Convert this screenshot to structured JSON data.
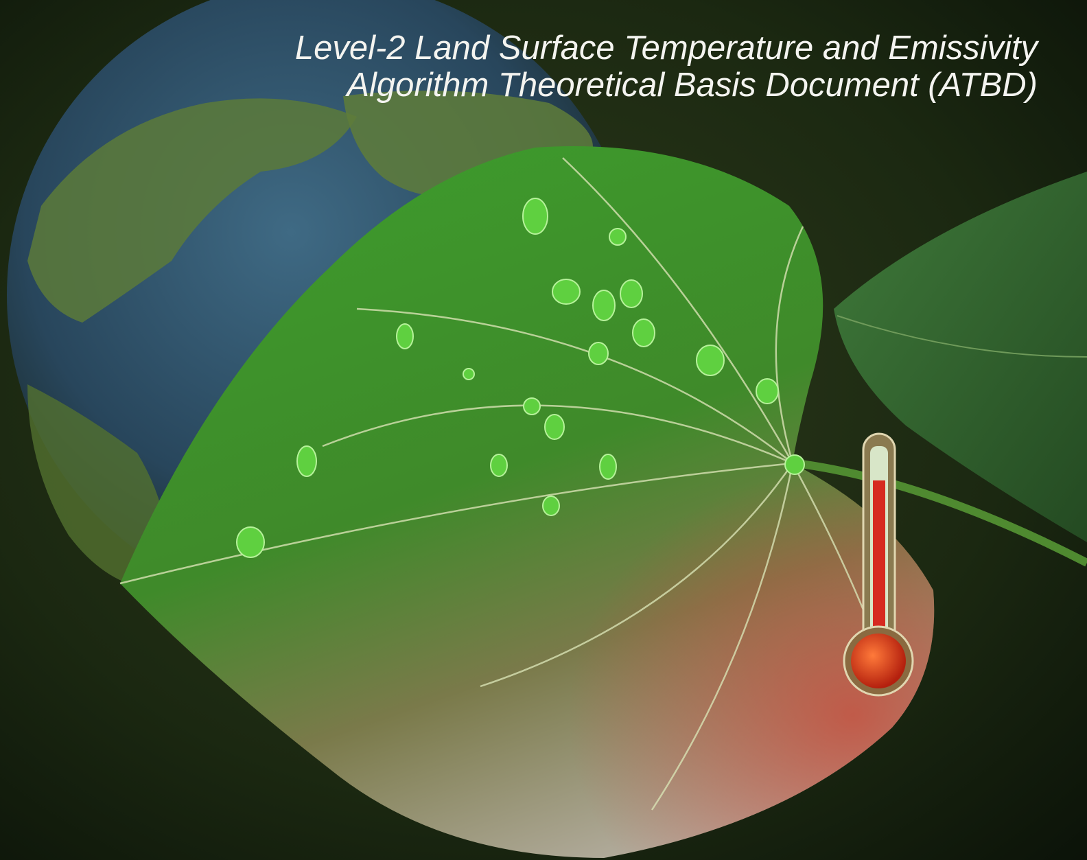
{
  "title": {
    "line1": "Level-2 Land Surface Temperature and Emissivity",
    "line2": "Algorithm Theoretical Basis Document (ATBD)"
  }
}
